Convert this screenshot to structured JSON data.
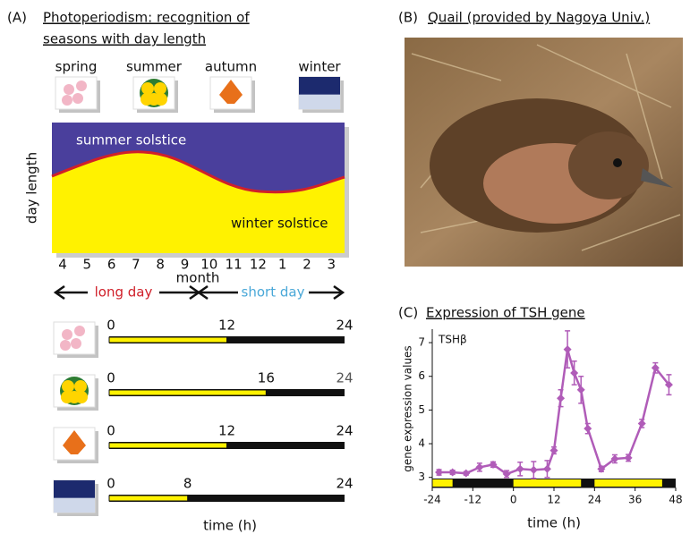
{
  "panel_a": {
    "label": "(A)",
    "title_lines": [
      "Photoperiodism: recognition of",
      "seasons with day length"
    ],
    "seasons": [
      "spring",
      "summer",
      "autumn",
      "winter"
    ],
    "y_label": "day length",
    "summer_label": "summer solstice",
    "winter_label": "winter solstice",
    "months": [
      4,
      5,
      6,
      7,
      8,
      9,
      10,
      11,
      12,
      1,
      2,
      3
    ],
    "x_label": "month",
    "long_day": "long day",
    "short_day": "short day",
    "schedule_range": [
      0,
      24
    ],
    "light_hours": [
      12,
      16,
      12,
      8
    ],
    "time_label": "time (h)"
  },
  "panel_b": {
    "label": "(B)",
    "title": "Quail (provided by Nagoya Univ.)"
  },
  "panel_c": {
    "label": "(C)",
    "title": "Expression of TSH gene"
  },
  "chart_data": {
    "type": "line",
    "x_label": "time (h)",
    "y_label": "gene expression values",
    "x": [
      -22,
      -18,
      -14,
      -10,
      -6,
      -2,
      2,
      6,
      10,
      12,
      14,
      16,
      18,
      20,
      22,
      26,
      30,
      34,
      38,
      42,
      46
    ],
    "series": [
      {
        "name": "TSHβ",
        "color": "#b05cb8",
        "values": [
          3.15,
          3.15,
          3.12,
          3.3,
          3.38,
          3.1,
          3.25,
          3.22,
          3.25,
          3.8,
          5.35,
          6.8,
          6.1,
          5.6,
          4.45,
          3.25,
          3.55,
          3.58,
          4.6,
          6.25,
          5.75
        ],
        "errors": [
          0.08,
          0.06,
          0.05,
          0.12,
          0.08,
          0.1,
          0.2,
          0.25,
          0.25,
          0.1,
          0.25,
          0.55,
          0.35,
          0.4,
          0.15,
          0.08,
          0.12,
          0.1,
          0.12,
          0.15,
          0.3
        ]
      }
    ],
    "light_periods": [
      [
        -24,
        -18
      ],
      [
        0,
        20
      ],
      [
        24,
        44
      ]
    ],
    "xlim": [
      -24,
      48
    ],
    "ylim": [
      2.7,
      7.4
    ],
    "xticks": [
      -24,
      -12,
      0,
      12,
      24,
      36,
      48
    ],
    "yticks": [
      3,
      4,
      5,
      6,
      7
    ],
    "grid": false
  }
}
